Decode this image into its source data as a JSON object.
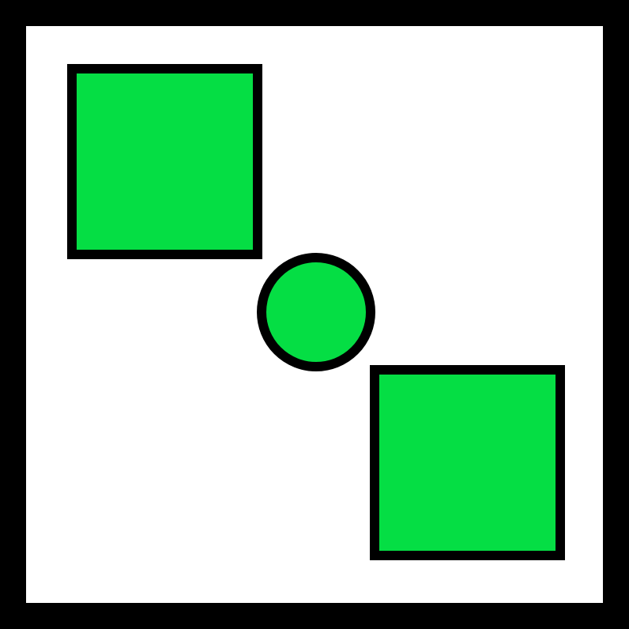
{
  "colors": {
    "frame": "#000000",
    "background": "#ffffff",
    "shape_fill": "#05de44",
    "shape_stroke": "#000000"
  },
  "shapes": [
    {
      "kind": "square",
      "id": "top-left-square"
    },
    {
      "kind": "circle",
      "id": "center-circle"
    },
    {
      "kind": "square",
      "id": "bottom-right-square"
    }
  ]
}
